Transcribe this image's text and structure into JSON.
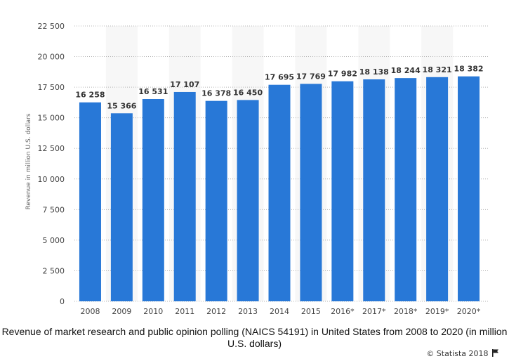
{
  "chart_data": {
    "type": "bar",
    "categories": [
      "2008",
      "2009",
      "2010",
      "2011",
      "2012",
      "2013",
      "2014",
      "2015",
      "2016*",
      "2017*",
      "2018*",
      "2019*",
      "2020*"
    ],
    "values": [
      16258,
      15366,
      16531,
      17107,
      16378,
      16450,
      17695,
      17769,
      17982,
      18138,
      18244,
      18321,
      18382
    ],
    "value_labels": [
      "16 258",
      "15 366",
      "16 531",
      "17 107",
      "16 378",
      "16 450",
      "17 695",
      "17 769",
      "17 982",
      "18 138",
      "18 244",
      "18 321",
      "18 382"
    ],
    "ylabel": "Revenue in million U.S. dollars",
    "ylim": [
      0,
      22500
    ],
    "yticks": [
      0,
      2500,
      5000,
      7500,
      10000,
      12500,
      15000,
      17500,
      20000,
      22500
    ],
    "ytick_labels": [
      "0",
      "2 500",
      "5 000",
      "7 500",
      "10 000",
      "12 500",
      "15 000",
      "17 500",
      "20 000",
      "22 500"
    ],
    "grid": true,
    "bar_color": "#2878d7"
  },
  "caption": "Revenue of market research and public opinion polling (NAICS 54191) in United States from 2008 to 2020 (in million U.S. dollars)",
  "credit": "© Statista 2018",
  "credit_icon": "flag-icon"
}
